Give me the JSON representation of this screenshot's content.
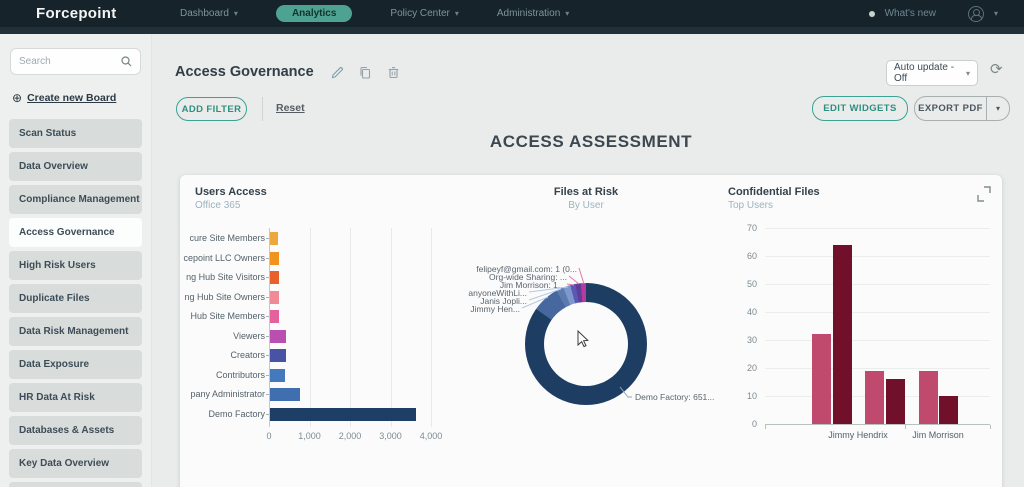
{
  "navbar": {
    "logo": "Forcepoint",
    "items": [
      {
        "label": "Dashboard",
        "caret": true,
        "active": false
      },
      {
        "label": "Analytics",
        "caret": false,
        "active": true
      },
      {
        "label": "Policy Center",
        "caret": true,
        "active": false
      },
      {
        "label": "Administration",
        "caret": true,
        "active": false
      }
    ],
    "whats_new": "What's new"
  },
  "sidebar": {
    "search_placeholder": "Search",
    "create_board": "Create new Board",
    "items": [
      "Scan Status",
      "Data Overview",
      "Compliance Management",
      "Access Governance",
      "High Risk Users",
      "Duplicate Files",
      "Data Risk Management",
      "Data Exposure",
      "HR Data At Risk",
      "Databases & Assets",
      "Key Data Overview"
    ],
    "selected_item": "Access Governance"
  },
  "toolbar": {
    "board_title": "Access Governance",
    "auto_update": "Auto update - Off",
    "add_filter": "ADD FILTER",
    "reset": "Reset",
    "edit_widgets": "EDIT WIDGETS",
    "export_pdf": "EXPORT PDF"
  },
  "page_heading": "ACCESS ASSESSMENT",
  "chart_data": [
    {
      "type": "bar",
      "orientation": "horizontal",
      "title": "Users Access",
      "subtitle": "Office 365",
      "categories": [
        "cure Site Members",
        "cepoint LLC Owners",
        "ng Hub Site Visitors",
        "ng Hub Site Owners",
        "Hub Site Members",
        "Viewers",
        "Creators",
        "Contributors",
        "pany Administrator",
        "Demo Factory"
      ],
      "values": [
        200,
        230,
        230,
        220,
        215,
        400,
        400,
        370,
        730,
        3600
      ],
      "bar_colors": [
        "#eaa83e",
        "#f0941f",
        "#e8602c",
        "#f18a97",
        "#e4619b",
        "#b94fb0",
        "#4853a5",
        "#4579be",
        "#3f6fae",
        "#1d3f66"
      ],
      "xlim": [
        0,
        4000
      ],
      "xticks": [
        "0",
        "1,000",
        "2,000",
        "3,000",
        "4,000"
      ],
      "grid": true
    },
    {
      "type": "donut",
      "title": "Files at Risk",
      "subtitle": "By User",
      "slices": [
        {
          "label": "Demo Factory: 651...",
          "share_deg": 305,
          "color": "#1e3d63"
        },
        {
          "label": "Jimmy Hen...",
          "share_deg": 26,
          "color": "#46689e"
        },
        {
          "label": "Janis Jopli...",
          "share_deg": 7,
          "color": "#5a7ab0"
        },
        {
          "label": "anyoneWithLi...",
          "share_deg": 7,
          "color": "#7e97cc"
        },
        {
          "label": "Jim Morrison: 1...",
          "share_deg": 5,
          "color": "#5b58b3"
        },
        {
          "label": "Org-wide Sharing: ...",
          "share_deg": 5,
          "color": "#5f3e9a"
        },
        {
          "label": "felipeyf@gmail.com: 1 (0...",
          "share_deg": 5,
          "color": "#b93a9e"
        }
      ],
      "callouts_left": [
        "felipeyf@gmail.com: 1 (0...",
        "Org-wide Sharing: ...",
        "Jim Morrison: 1...",
        "anyoneWithLi...",
        "Janis Jopli...",
        "Jimmy Hen..."
      ],
      "callout_right": "Demo Factory: 651...",
      "legend_position": "callouts"
    },
    {
      "type": "bar",
      "orientation": "vertical",
      "title": "Confidential Files",
      "subtitle": "Top Users",
      "groups": [
        {
          "label": "Jimmy Hendrix",
          "values": [
            32,
            64,
            19,
            16
          ]
        },
        {
          "label": "Jim Morrison",
          "values": [
            19,
            10
          ]
        }
      ],
      "bar_colors_alternating": [
        "#bf4a6d",
        "#70102a"
      ],
      "ylim": [
        0,
        70
      ],
      "yticks": [
        0,
        10,
        20,
        30,
        40,
        50,
        60,
        70
      ],
      "grid": true
    }
  ]
}
